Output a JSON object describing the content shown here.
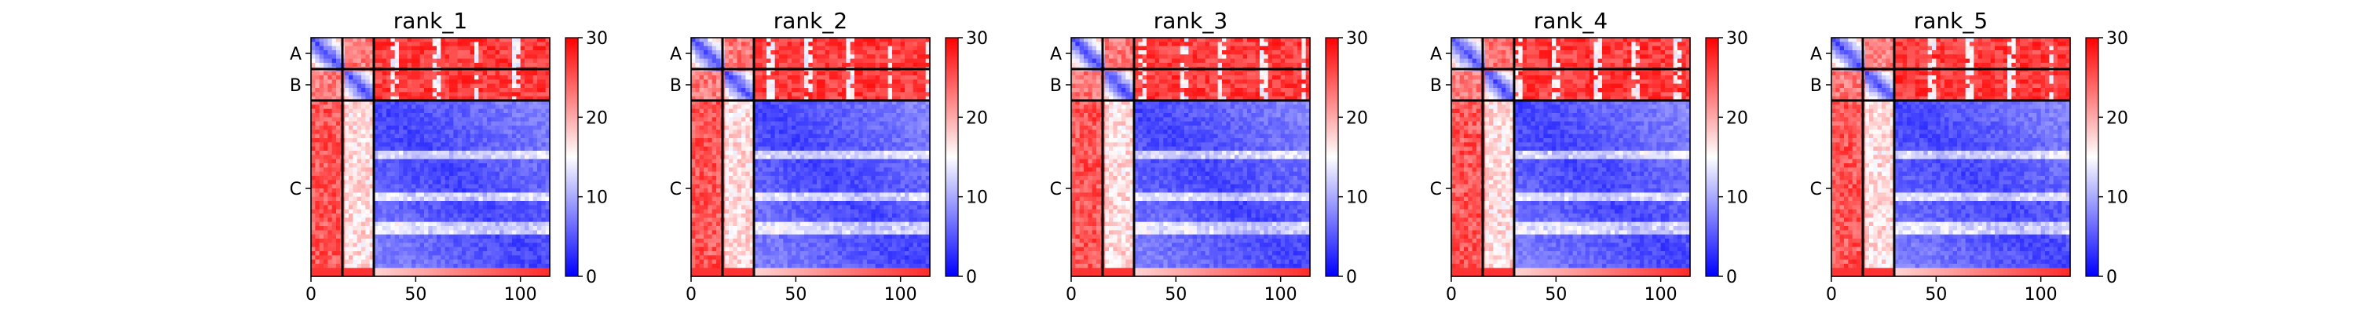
{
  "chart_data": [
    {
      "type": "heatmap",
      "title": "rank_1",
      "xlabel": "",
      "ylabel": "",
      "x_ticks": [
        0,
        50,
        100
      ],
      "y_tick_labels": [
        "A",
        "B",
        "C"
      ],
      "chains": [
        {
          "name": "A",
          "start": 0,
          "end": 15
        },
        {
          "name": "B",
          "start": 15,
          "end": 30
        },
        {
          "name": "C",
          "start": 30,
          "end": 114
        }
      ],
      "residue_count": 114,
      "colorbar": {
        "min": 0,
        "max": 30,
        "ticks": [
          0,
          10,
          20,
          30
        ]
      },
      "colormap": [
        "#0000ff",
        "#ffffff",
        "#ff0000"
      ],
      "grid": false
    },
    {
      "type": "heatmap",
      "title": "rank_2",
      "xlabel": "",
      "ylabel": "",
      "x_ticks": [
        0,
        50,
        100
      ],
      "y_tick_labels": [
        "A",
        "B",
        "C"
      ],
      "chains": [
        {
          "name": "A",
          "start": 0,
          "end": 15
        },
        {
          "name": "B",
          "start": 15,
          "end": 30
        },
        {
          "name": "C",
          "start": 30,
          "end": 114
        }
      ],
      "residue_count": 114,
      "colorbar": {
        "min": 0,
        "max": 30,
        "ticks": [
          0,
          10,
          20,
          30
        ]
      },
      "colormap": [
        "#0000ff",
        "#ffffff",
        "#ff0000"
      ],
      "grid": false
    },
    {
      "type": "heatmap",
      "title": "rank_3",
      "xlabel": "",
      "ylabel": "",
      "x_ticks": [
        0,
        50,
        100
      ],
      "y_tick_labels": [
        "A",
        "B",
        "C"
      ],
      "chains": [
        {
          "name": "A",
          "start": 0,
          "end": 15
        },
        {
          "name": "B",
          "start": 15,
          "end": 30
        },
        {
          "name": "C",
          "start": 30,
          "end": 114
        }
      ],
      "residue_count": 114,
      "colorbar": {
        "min": 0,
        "max": 30,
        "ticks": [
          0,
          10,
          20,
          30
        ]
      },
      "colormap": [
        "#0000ff",
        "#ffffff",
        "#ff0000"
      ],
      "grid": false
    },
    {
      "type": "heatmap",
      "title": "rank_4",
      "xlabel": "",
      "ylabel": "",
      "x_ticks": [
        0,
        50,
        100
      ],
      "y_tick_labels": [
        "A",
        "B",
        "C"
      ],
      "chains": [
        {
          "name": "A",
          "start": 0,
          "end": 15
        },
        {
          "name": "B",
          "start": 15,
          "end": 30
        },
        {
          "name": "C",
          "start": 30,
          "end": 114
        }
      ],
      "residue_count": 114,
      "colorbar": {
        "min": 0,
        "max": 30,
        "ticks": [
          0,
          10,
          20,
          30
        ]
      },
      "colormap": [
        "#0000ff",
        "#ffffff",
        "#ff0000"
      ],
      "grid": false
    },
    {
      "type": "heatmap",
      "title": "rank_5",
      "xlabel": "",
      "ylabel": "",
      "x_ticks": [
        0,
        50,
        100
      ],
      "y_tick_labels": [
        "A",
        "B",
        "C"
      ],
      "chains": [
        {
          "name": "A",
          "start": 0,
          "end": 15
        },
        {
          "name": "B",
          "start": 15,
          "end": 30
        },
        {
          "name": "C",
          "start": 30,
          "end": 114
        }
      ],
      "residue_count": 114,
      "colorbar": {
        "min": 0,
        "max": 30,
        "ticks": [
          0,
          10,
          20,
          30
        ]
      },
      "colormap": [
        "#0000ff",
        "#ffffff",
        "#ff0000"
      ],
      "grid": false
    }
  ]
}
